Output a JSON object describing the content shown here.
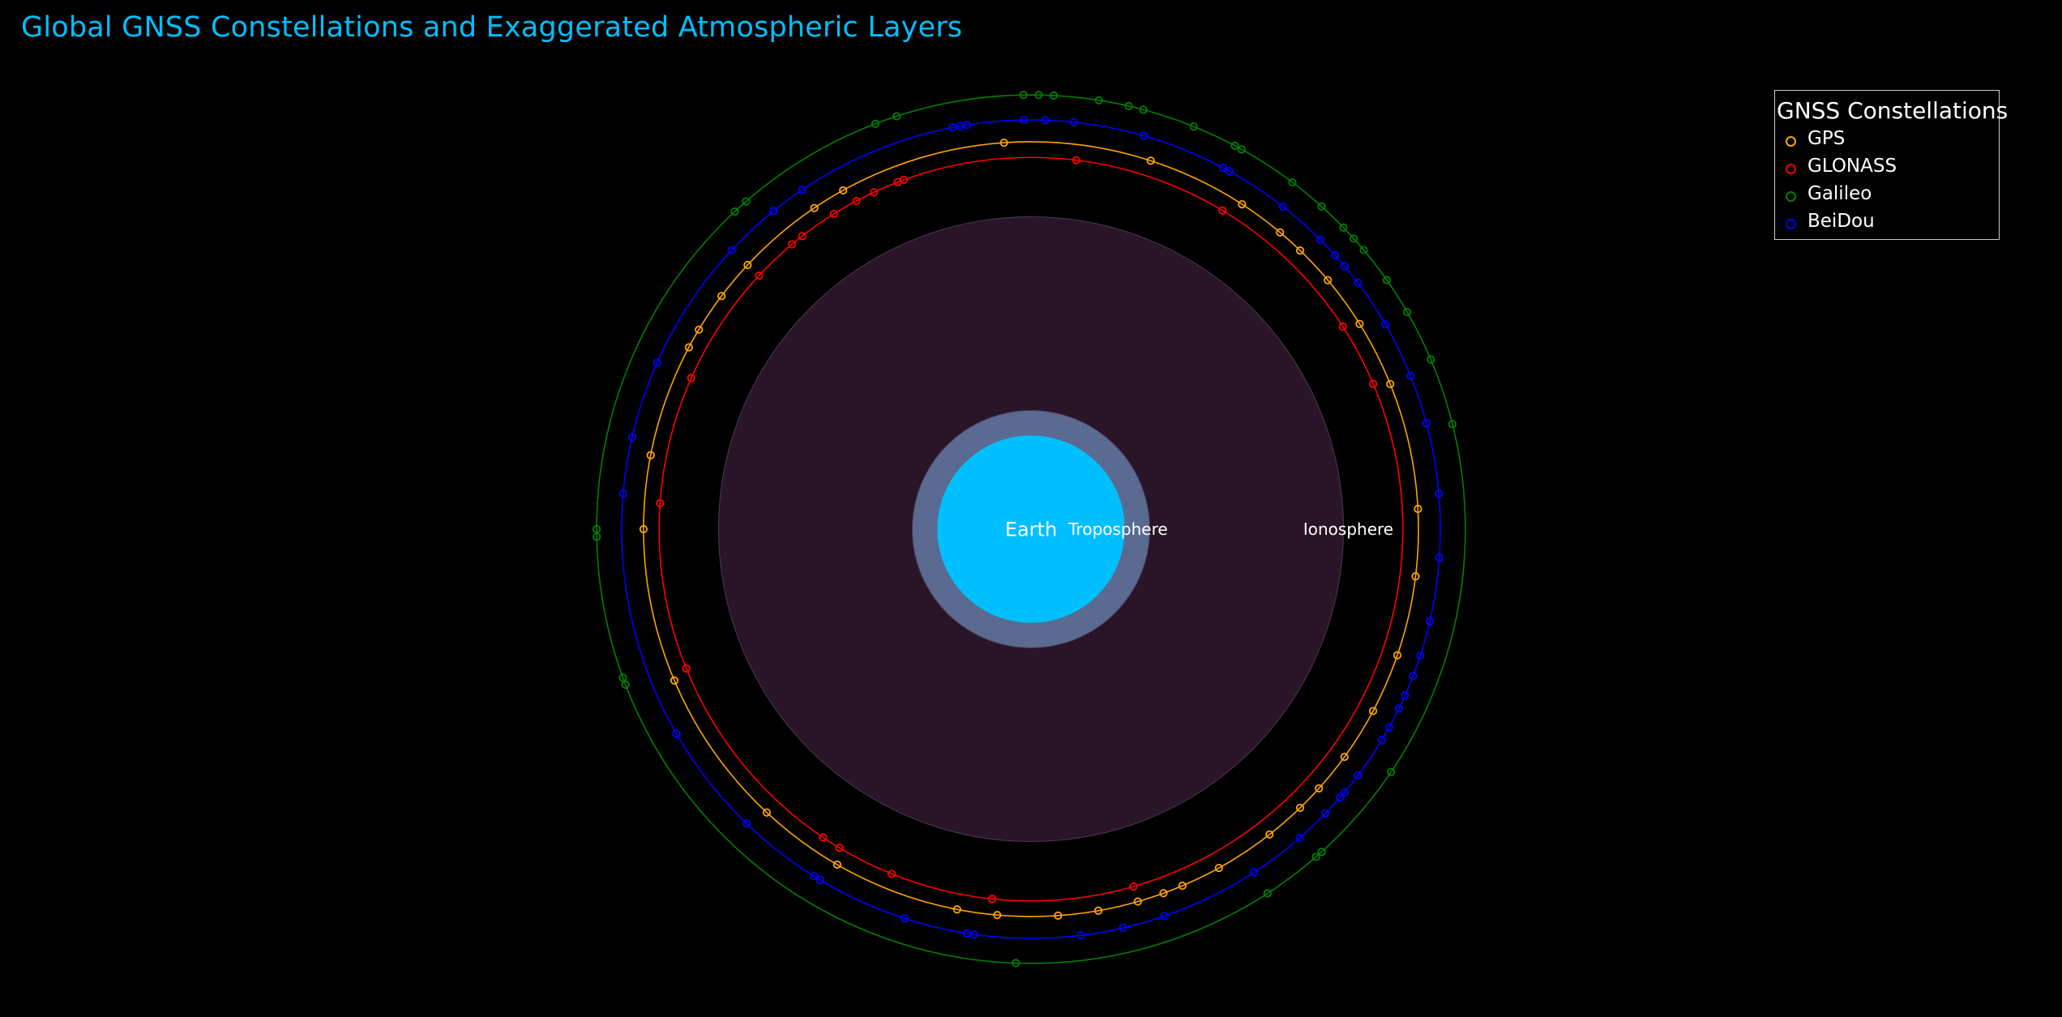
{
  "title": "Global GNSS Constellations and Exaggerated Atmospheric Layers",
  "legend": {
    "title": "GNSS Constellations",
    "items": [
      {
        "label": "GPS",
        "color": "#FFA500"
      },
      {
        "label": "GLONASS",
        "color": "#FF0000"
      },
      {
        "label": "Galileo",
        "color": "#008000"
      },
      {
        "label": "BeiDou",
        "color": "#0000FF"
      }
    ]
  },
  "chart_data": {
    "type": "scatter",
    "projection": "polar",
    "grid": false,
    "legend_position": "top-right",
    "background": "#000000",
    "layers": [
      {
        "name": "Ionosphere",
        "radius": 1000,
        "color": "#2A1428"
      },
      {
        "name": "Troposphere",
        "radius": 380,
        "color": "#5A6A90"
      },
      {
        "name": "Earth",
        "radius": 300,
        "color": "#00BFFF"
      }
    ],
    "series": [
      {
        "name": "GPS",
        "color": "#FFA500",
        "radius": 1240,
        "angles_deg": [
          94,
          72,
          57,
          50,
          46,
          40,
          32,
          22,
          3,
          -7,
          -19,
          -28,
          -36,
          -42,
          -46,
          -52,
          -61,
          -67,
          -70,
          -74,
          -80,
          -86,
          -95,
          -101,
          -120,
          -133,
          -157,
          -180,
          169,
          152,
          149,
          143,
          137,
          124,
          119
        ]
      },
      {
        "name": "GLONASS",
        "color": "#FF0000",
        "radius": 1190,
        "angles_deg": [
          115,
          110,
          111,
          83,
          59,
          33,
          23,
          118,
          122,
          128,
          130,
          137,
          156,
          176,
          -158,
          -124,
          -121,
          -112,
          -96,
          -74
        ]
      },
      {
        "name": "Galileo",
        "color": "#008000",
        "radius": 1390,
        "angles_deg": [
          91,
          89,
          87,
          81,
          77,
          75,
          68,
          62,
          61,
          53,
          48,
          44,
          42,
          40,
          35,
          30,
          23,
          14,
          111,
          108,
          131,
          133,
          -179,
          -180,
          -160,
          -159,
          -57,
          -49,
          -48,
          -34,
          -92
        ]
      },
      {
        "name": "BeiDou",
        "color": "#0000FF",
        "radius": 1310,
        "angles_deg": [
          100,
          91,
          88,
          84,
          74,
          62,
          61,
          52,
          45,
          42,
          40,
          37,
          30,
          22,
          15,
          5,
          -4,
          -13,
          -18,
          -21,
          -24,
          -26,
          -29,
          -31,
          -37,
          -40,
          -41,
          -44,
          -49,
          -57,
          -71,
          -77,
          -83,
          -98,
          -99,
          -108,
          -121,
          -122,
          -134,
          -150,
          175,
          167,
          156,
          137,
          129,
          124,
          101,
          99
        ]
      }
    ],
    "labels": [
      "Earth",
      "Troposphere",
      "Ionosphere"
    ]
  }
}
